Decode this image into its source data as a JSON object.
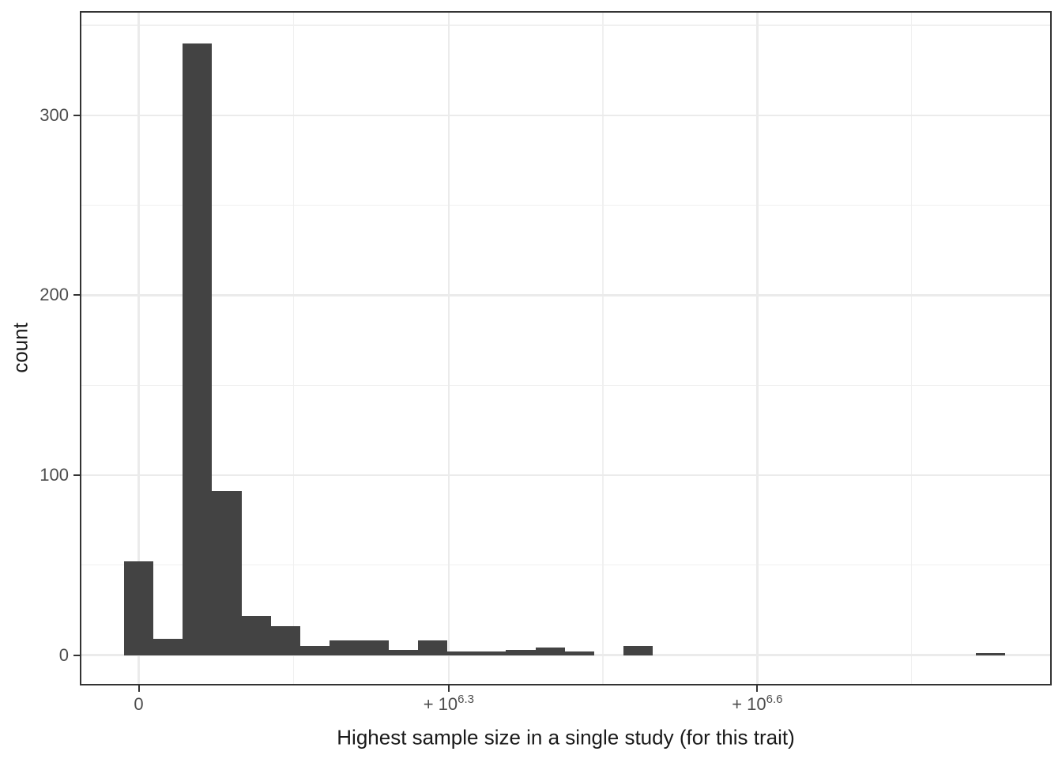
{
  "chart_data": {
    "type": "histogram",
    "title": "",
    "xlabel": "Highest sample size in a single study (for this trait)",
    "ylabel": "count",
    "legend": "none",
    "grid": "major and minor gridlines on",
    "panel_background": "#FFFFFF",
    "page_background": "#FFFFFF",
    "bar_color": "#434343",
    "grid_major_color": "#EBEBEB",
    "grid_minor_color": "#F0F0F0",
    "panel_border_color": "#333333",
    "tick_mark_color": "#333333",
    "tick_label_color": "#4D4D4D",
    "axis_title_color": "#1A1A1A",
    "xlim": [
      -368700,
      5865800
    ],
    "ylim": [
      -16,
      357
    ],
    "x_major_ticks": [
      {
        "value": 0,
        "base": "0",
        "sup": ""
      },
      {
        "value": 1995262,
        "base": "+ 10",
        "sup": "6.3"
      },
      {
        "value": 3981072,
        "base": "+ 10",
        "sup": "6.6"
      }
    ],
    "x_minor_values": [
      997631,
      2988167,
      4973977
    ],
    "y_major_ticks": [
      {
        "value": 0,
        "label": "0"
      },
      {
        "value": 100,
        "label": "100"
      },
      {
        "value": 200,
        "label": "200"
      },
      {
        "value": 300,
        "label": "300"
      }
    ],
    "y_minor_values": [
      50,
      150,
      250,
      350
    ],
    "bins": {
      "center_start": 0,
      "center_step": 189100,
      "counts": [
        52,
        9,
        340,
        91,
        22,
        16,
        5,
        8,
        8,
        3,
        8,
        2,
        2,
        3,
        4,
        2,
        0,
        5,
        0,
        0,
        0,
        0,
        0,
        0,
        0,
        0,
        0,
        0,
        0,
        1
      ]
    }
  }
}
